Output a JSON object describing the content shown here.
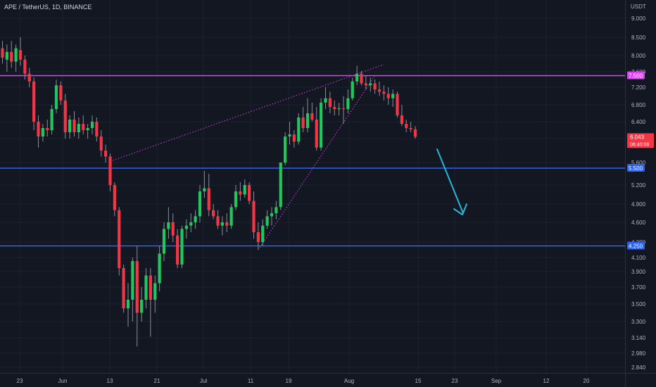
{
  "header": {
    "symbol_line": "APE / TetherUS, 1D, BINANCE",
    "currency": "USDT"
  },
  "chart_data": {
    "type": "candlestick",
    "symbol": "APE / TetherUS",
    "interval": "1D",
    "exchange": "BINANCE",
    "price_axis": {
      "ticks": [
        "9.000",
        "8.500",
        "8.000",
        "7.600",
        "7.200",
        "6.800",
        "6.400",
        "6.000",
        "5.600",
        "5.200",
        "4.900",
        "4.600",
        "4.300",
        "4.100",
        "3.900",
        "3.700",
        "3.500",
        "3.300",
        "3.140",
        "2.980",
        "2.840"
      ]
    },
    "time_axis": {
      "ticks": [
        "23",
        "Jun",
        "13",
        "21",
        "Jul",
        "11",
        "19",
        "Aug",
        "15",
        "23",
        "Sep",
        "12",
        "20"
      ]
    },
    "candles": [
      {
        "date": "May 17",
        "o": 8.2,
        "h": 8.4,
        "l": 7.8,
        "c": 7.95
      },
      {
        "date": "May 18",
        "o": 7.9,
        "h": 8.3,
        "l": 7.6,
        "c": 8.1
      },
      {
        "date": "May 19",
        "o": 8.1,
        "h": 8.4,
        "l": 7.7,
        "c": 7.85
      },
      {
        "date": "May 20",
        "o": 7.85,
        "h": 8.3,
        "l": 7.6,
        "c": 8.2
      },
      {
        "date": "May 21",
        "o": 8.15,
        "h": 8.5,
        "l": 7.75,
        "c": 7.9
      },
      {
        "date": "May 22",
        "o": 7.9,
        "h": 8.0,
        "l": 7.4,
        "c": 7.55
      },
      {
        "date": "May 23",
        "o": 7.55,
        "h": 7.7,
        "l": 7.2,
        "c": 7.35
      },
      {
        "date": "May 24",
        "o": 7.35,
        "h": 7.45,
        "l": 6.2,
        "c": 6.4
      },
      {
        "date": "May 25",
        "o": 6.4,
        "h": 6.55,
        "l": 5.85,
        "c": 6.05
      },
      {
        "date": "May 26",
        "o": 6.05,
        "h": 6.35,
        "l": 5.95,
        "c": 6.25
      },
      {
        "date": "May 27",
        "o": 6.25,
        "h": 6.45,
        "l": 6.05,
        "c": 6.2
      },
      {
        "date": "May 28",
        "o": 6.2,
        "h": 6.8,
        "l": 6.1,
        "c": 6.7
      },
      {
        "date": "May 29",
        "o": 6.7,
        "h": 7.4,
        "l": 6.6,
        "c": 7.25
      },
      {
        "date": "May 30",
        "o": 7.25,
        "h": 7.35,
        "l": 6.8,
        "c": 6.9
      },
      {
        "date": "May 31",
        "o": 6.9,
        "h": 7.05,
        "l": 6.0,
        "c": 6.15
      },
      {
        "date": "Jun 1",
        "o": 6.15,
        "h": 6.55,
        "l": 6.0,
        "c": 6.45
      },
      {
        "date": "Jun 2",
        "o": 6.45,
        "h": 6.65,
        "l": 6.05,
        "c": 6.15
      },
      {
        "date": "Jun 3",
        "o": 6.15,
        "h": 6.5,
        "l": 6.0,
        "c": 6.35
      },
      {
        "date": "Jun 4",
        "o": 6.35,
        "h": 6.55,
        "l": 6.1,
        "c": 6.2
      },
      {
        "date": "Jun 5",
        "o": 6.2,
        "h": 6.35,
        "l": 6.0,
        "c": 6.25
      },
      {
        "date": "Jun 6",
        "o": 6.25,
        "h": 6.55,
        "l": 6.1,
        "c": 6.4
      },
      {
        "date": "Jun 7",
        "o": 6.4,
        "h": 6.5,
        "l": 5.95,
        "c": 6.05
      },
      {
        "date": "Jun 8",
        "o": 6.05,
        "h": 6.2,
        "l": 5.7,
        "c": 5.8
      },
      {
        "date": "Jun 9",
        "o": 5.8,
        "h": 5.9,
        "l": 5.6,
        "c": 5.7
      },
      {
        "date": "Jun 10",
        "o": 5.7,
        "h": 5.75,
        "l": 5.1,
        "c": 5.2
      },
      {
        "date": "Jun 11",
        "o": 5.2,
        "h": 5.25,
        "l": 4.7,
        "c": 4.8
      },
      {
        "date": "Jun 12",
        "o": 4.8,
        "h": 4.85,
        "l": 3.85,
        "c": 3.95
      },
      {
        "date": "Jun 13",
        "o": 3.95,
        "h": 4.0,
        "l": 3.4,
        "c": 3.45
      },
      {
        "date": "Jun 14",
        "o": 3.45,
        "h": 3.75,
        "l": 3.25,
        "c": 3.55
      },
      {
        "date": "Jun 15",
        "o": 3.55,
        "h": 4.1,
        "l": 3.3,
        "c": 4.05
      },
      {
        "date": "Jun 16",
        "o": 4.05,
        "h": 4.25,
        "l": 3.05,
        "c": 3.4
      },
      {
        "date": "Jun 17",
        "o": 3.4,
        "h": 3.7,
        "l": 3.3,
        "c": 3.55
      },
      {
        "date": "Jun 18",
        "o": 3.55,
        "h": 3.95,
        "l": 3.45,
        "c": 3.85
      },
      {
        "date": "Jun 19",
        "o": 3.85,
        "h": 3.95,
        "l": 3.15,
        "c": 3.55
      },
      {
        "date": "Jun 20",
        "o": 3.55,
        "h": 3.85,
        "l": 3.4,
        "c": 3.75
      },
      {
        "date": "Jun 21",
        "o": 3.75,
        "h": 4.25,
        "l": 3.65,
        "c": 4.15
      },
      {
        "date": "Jun 22",
        "o": 4.15,
        "h": 4.6,
        "l": 4.05,
        "c": 4.5
      },
      {
        "date": "Jun 23",
        "o": 4.5,
        "h": 4.85,
        "l": 4.35,
        "c": 4.6
      },
      {
        "date": "Jun 24",
        "o": 4.6,
        "h": 4.75,
        "l": 4.3,
        "c": 4.4
      },
      {
        "date": "Jun 25",
        "o": 4.4,
        "h": 4.5,
        "l": 3.95,
        "c": 4.0
      },
      {
        "date": "Jun 26",
        "o": 4.0,
        "h": 4.55,
        "l": 3.95,
        "c": 4.5
      },
      {
        "date": "Jun 27",
        "o": 4.5,
        "h": 4.65,
        "l": 4.35,
        "c": 4.55
      },
      {
        "date": "Jun 28",
        "o": 4.55,
        "h": 4.75,
        "l": 4.45,
        "c": 4.6
      },
      {
        "date": "Jun 29",
        "o": 4.6,
        "h": 4.8,
        "l": 4.5,
        "c": 4.7
      },
      {
        "date": "Jun 30",
        "o": 4.7,
        "h": 5.2,
        "l": 4.6,
        "c": 5.1
      },
      {
        "date": "Jul 1",
        "o": 5.1,
        "h": 5.45,
        "l": 5.0,
        "c": 5.15
      },
      {
        "date": "Jul 2",
        "o": 5.15,
        "h": 5.4,
        "l": 4.7,
        "c": 4.8
      },
      {
        "date": "Jul 3",
        "o": 4.8,
        "h": 4.9,
        "l": 4.65,
        "c": 4.7
      },
      {
        "date": "Jul 4",
        "o": 4.7,
        "h": 4.8,
        "l": 4.5,
        "c": 4.55
      },
      {
        "date": "Jul 5",
        "o": 4.55,
        "h": 4.7,
        "l": 4.4,
        "c": 4.6
      },
      {
        "date": "Jul 6",
        "o": 4.6,
        "h": 4.75,
        "l": 4.45,
        "c": 4.55
      },
      {
        "date": "Jul 7",
        "o": 4.55,
        "h": 4.9,
        "l": 4.5,
        "c": 4.85
      },
      {
        "date": "Jul 8",
        "o": 4.85,
        "h": 5.2,
        "l": 4.8,
        "c": 5.1
      },
      {
        "date": "Jul 9",
        "o": 5.1,
        "h": 5.25,
        "l": 4.95,
        "c": 5.05
      },
      {
        "date": "Jul 10",
        "o": 5.05,
        "h": 5.3,
        "l": 5.0,
        "c": 5.2
      },
      {
        "date": "Jul 11",
        "o": 5.2,
        "h": 5.25,
        "l": 4.9,
        "c": 4.95
      },
      {
        "date": "Jul 12",
        "o": 4.95,
        "h": 5.1,
        "l": 4.35,
        "c": 4.45
      },
      {
        "date": "Jul 13",
        "o": 4.45,
        "h": 4.6,
        "l": 4.2,
        "c": 4.3
      },
      {
        "date": "Jul 14",
        "o": 4.3,
        "h": 4.65,
        "l": 4.25,
        "c": 4.55
      },
      {
        "date": "Jul 15",
        "o": 4.55,
        "h": 4.8,
        "l": 4.5,
        "c": 4.7
      },
      {
        "date": "Jul 16",
        "o": 4.7,
        "h": 4.85,
        "l": 4.55,
        "c": 4.75
      },
      {
        "date": "Jul 17",
        "o": 4.75,
        "h": 4.95,
        "l": 4.65,
        "c": 4.85
      },
      {
        "date": "Jul 18",
        "o": 4.85,
        "h": 5.6,
        "l": 4.8,
        "c": 5.6
      },
      {
        "date": "Jul 19",
        "o": 5.6,
        "h": 6.15,
        "l": 5.55,
        "c": 6.05
      },
      {
        "date": "Jul 20",
        "o": 6.05,
        "h": 6.4,
        "l": 5.9,
        "c": 6.1
      },
      {
        "date": "Jul 21",
        "o": 6.1,
        "h": 6.2,
        "l": 5.85,
        "c": 5.95
      },
      {
        "date": "Jul 22",
        "o": 5.95,
        "h": 6.6,
        "l": 5.9,
        "c": 6.5
      },
      {
        "date": "Jul 23",
        "o": 6.5,
        "h": 6.75,
        "l": 6.15,
        "c": 6.25
      },
      {
        "date": "Jul 24",
        "o": 6.25,
        "h": 6.95,
        "l": 6.15,
        "c": 6.6
      },
      {
        "date": "Jul 25",
        "o": 6.6,
        "h": 6.85,
        "l": 6.4,
        "c": 6.45
      },
      {
        "date": "Jul 26",
        "o": 6.45,
        "h": 6.75,
        "l": 5.8,
        "c": 5.85
      },
      {
        "date": "Jul 27",
        "o": 5.85,
        "h": 6.95,
        "l": 5.8,
        "c": 6.85
      },
      {
        "date": "Jul 28",
        "o": 6.85,
        "h": 7.2,
        "l": 6.7,
        "c": 6.95
      },
      {
        "date": "Jul 29",
        "o": 6.95,
        "h": 7.1,
        "l": 6.6,
        "c": 6.75
      },
      {
        "date": "Jul 30",
        "o": 6.75,
        "h": 6.9,
        "l": 6.55,
        "c": 6.7
      },
      {
        "date": "Jul 31",
        "o": 6.7,
        "h": 6.85,
        "l": 6.55,
        "c": 6.72
      },
      {
        "date": "Aug 1",
        "o": 6.72,
        "h": 7.0,
        "l": 6.35,
        "c": 6.7
      },
      {
        "date": "Aug 2",
        "o": 6.7,
        "h": 7.15,
        "l": 6.6,
        "c": 6.95
      },
      {
        "date": "Aug 3",
        "o": 6.95,
        "h": 7.45,
        "l": 6.9,
        "c": 7.35
      },
      {
        "date": "Aug 4",
        "o": 7.35,
        "h": 7.75,
        "l": 7.25,
        "c": 7.55
      },
      {
        "date": "Aug 5",
        "o": 7.55,
        "h": 7.62,
        "l": 7.25,
        "c": 7.3
      },
      {
        "date": "Aug 6",
        "o": 7.3,
        "h": 7.5,
        "l": 7.15,
        "c": 7.25
      },
      {
        "date": "Aug 7",
        "o": 7.25,
        "h": 7.45,
        "l": 7.1,
        "c": 7.3
      },
      {
        "date": "Aug 8",
        "o": 7.3,
        "h": 7.4,
        "l": 7.05,
        "c": 7.15
      },
      {
        "date": "Aug 9",
        "o": 7.15,
        "h": 7.35,
        "l": 7.0,
        "c": 7.1
      },
      {
        "date": "Aug 10",
        "o": 7.1,
        "h": 7.25,
        "l": 6.9,
        "c": 7.05
      },
      {
        "date": "Aug 11",
        "o": 7.05,
        "h": 7.2,
        "l": 6.8,
        "c": 6.95
      },
      {
        "date": "Aug 12",
        "o": 6.95,
        "h": 7.15,
        "l": 6.75,
        "c": 7.05
      },
      {
        "date": "Aug 13",
        "o": 7.05,
        "h": 7.1,
        "l": 6.5,
        "c": 6.55
      },
      {
        "date": "Aug 14",
        "o": 6.55,
        "h": 6.8,
        "l": 6.3,
        "c": 6.35
      },
      {
        "date": "Aug 15",
        "o": 6.35,
        "h": 6.45,
        "l": 6.15,
        "c": 6.25
      },
      {
        "date": "Aug 16",
        "o": 6.25,
        "h": 6.4,
        "l": 6.15,
        "c": 6.22
      },
      {
        "date": "Aug 17",
        "o": 6.22,
        "h": 6.3,
        "l": 6.0,
        "c": 6.043
      }
    ],
    "horizontal_lines": [
      {
        "price": 7.5,
        "label": "7.500",
        "color": "#e040fb"
      },
      {
        "price": 5.5,
        "label": "5.500",
        "color": "#2962ff"
      },
      {
        "price": 4.25,
        "label": "4.250",
        "color": "#2962ff"
      }
    ],
    "trend_lines": [
      {
        "from": {
          "date": "Jun 10",
          "price": 5.62
        },
        "to": {
          "date": "Aug 10",
          "price": 7.78
        },
        "color": "#c940d8",
        "style": "dotted"
      },
      {
        "from": {
          "date": "Jul 13",
          "price": 4.2
        },
        "to": {
          "date": "Aug 8",
          "price": 7.5
        },
        "color": "#c940d8",
        "style": "dotted"
      }
    ],
    "current_price": {
      "value": "6.043",
      "countdown": "06:40:08",
      "color": "#f23645"
    },
    "arrow": {
      "color": "#29b6d8",
      "direction": "down"
    },
    "colors": {
      "up": "#089981",
      "up_body": "#22c55e",
      "down": "#f23645",
      "background": "#131722"
    }
  }
}
